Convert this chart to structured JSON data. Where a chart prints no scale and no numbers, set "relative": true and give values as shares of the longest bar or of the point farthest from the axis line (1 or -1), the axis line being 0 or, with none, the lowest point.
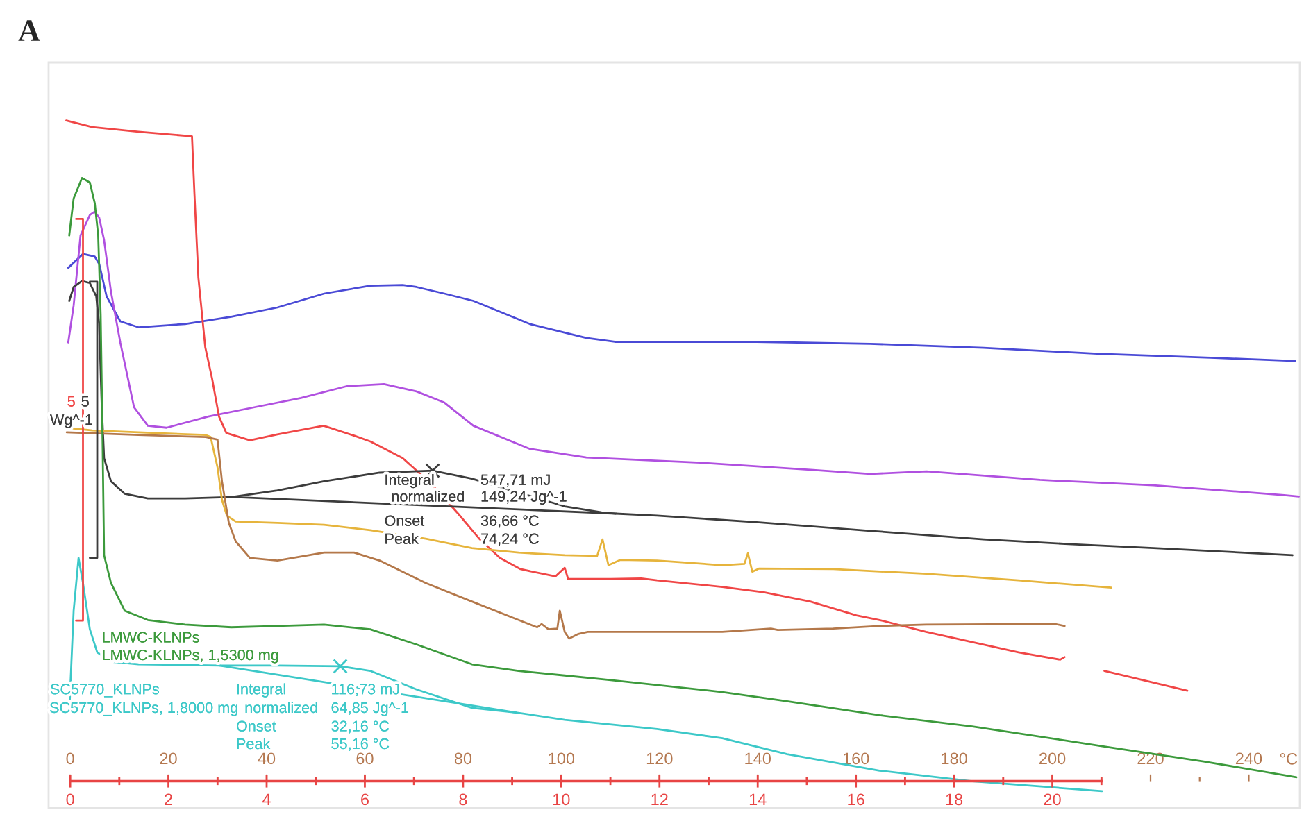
{
  "chart_data": {
    "type": "line",
    "relative": true,
    "title": "A",
    "xlabel": "°C",
    "xlim": [
      -4.4,
      250.4
    ],
    "xticks": [
      0,
      {
        "value": 10,
        "label": null
      },
      20,
      {
        "value": 30,
        "label": null
      },
      40,
      {
        "value": 50,
        "label": null
      },
      60,
      {
        "value": 70,
        "label": null
      },
      80,
      {
        "value": 90,
        "label": null
      },
      100,
      {
        "value": 110,
        "label": null
      },
      120,
      {
        "value": 130,
        "label": null
      },
      140,
      {
        "value": 150,
        "label": null
      },
      160,
      {
        "value": 170,
        "label": null
      },
      180,
      {
        "value": 190,
        "label": null
      },
      200,
      {
        "value": 210,
        "label": null
      },
      220,
      {
        "value": 230,
        "label": null
      },
      240
    ],
    "x2lim": [
      -0.44,
      25.04
    ],
    "x2ticks": [
      0,
      {
        "value": 1,
        "label": null
      },
      2,
      {
        "value": 3,
        "label": null
      },
      4,
      {
        "value": 5,
        "label": null
      },
      6,
      {
        "value": 7,
        "label": null
      },
      8,
      {
        "value": 9,
        "label": null
      },
      10,
      {
        "value": 11,
        "label": null
      },
      12,
      {
        "value": 13,
        "label": null
      },
      14,
      {
        "value": 15,
        "label": null
      },
      16,
      {
        "value": 17,
        "label": null
      },
      18,
      {
        "value": 19,
        "label": null
      },
      20,
      {
        "value": 21,
        "label": null
      }
    ],
    "series": [
      {
        "color": "#4a4ad6",
        "x": [
          -0.4,
          2.6,
          5.0,
          5.9,
          7.4,
          10.2,
          13.9,
          23.4,
          32.8,
          42.2,
          51.7,
          61.1,
          67.7,
          70.5,
          76.2,
          82.1,
          93.6,
          105.1,
          110.9,
          139.8,
          162.9,
          186.0,
          209.1,
          232.2,
          249.5
        ],
        "values": [
          0.777,
          0.798,
          0.794,
          0.783,
          0.734,
          0.696,
          0.687,
          0.692,
          0.703,
          0.717,
          0.738,
          0.75,
          0.751,
          0.748,
          0.738,
          0.727,
          0.692,
          0.671,
          0.665,
          0.665,
          0.662,
          0.656,
          0.647,
          0.641,
          0.636
        ]
      },
      {
        "color": "#b050e0",
        "x": [
          -0.4,
          0.7,
          2.1,
          4.0,
          5.0,
          5.9,
          6.9,
          8.3,
          10.2,
          13.0,
          15.8,
          19.6,
          28.1,
          37.5,
          47.0,
          56.4,
          63.9,
          70.5,
          76.2,
          82.1,
          93.6,
          105.1,
          128.3,
          151.3,
          162.9,
          174.4,
          197.5,
          220.6,
          247.2,
          250.2
        ],
        "values": [
          0.664,
          0.72,
          0.826,
          0.857,
          0.862,
          0.853,
          0.819,
          0.741,
          0.664,
          0.566,
          0.538,
          0.535,
          0.552,
          0.566,
          0.58,
          0.598,
          0.601,
          0.59,
          0.573,
          0.538,
          0.503,
          0.49,
          0.482,
          0.471,
          0.465,
          0.469,
          0.456,
          0.448,
          0.433,
          0.431
        ]
      },
      {
        "color": "#f04646",
        "x": [
          -0.8,
          4.5,
          13.9,
          24.8,
          25.3,
          26.1,
          27.5,
          28.9,
          30.3,
          31.8,
          36.6,
          42.2,
          51.6,
          57.8,
          61.2,
          67.7,
          73.4,
          79.0,
          83.3,
          87.5,
          91.7,
          98.8,
          100.7,
          101.4,
          110.1,
          116.3,
          119.5,
          132.8,
          141.3,
          150.7,
          160.1,
          164.8,
          174.3,
          193.1,
          201.6,
          202.5,
          206.5,
          210.6,
          227.5
        ],
        "values": [
          1.0,
          0.99,
          0.983,
          0.976,
          0.889,
          0.762,
          0.657,
          0.609,
          0.552,
          0.527,
          0.516,
          0.525,
          0.538,
          0.523,
          0.514,
          0.489,
          0.451,
          0.405,
          0.367,
          0.338,
          0.321,
          0.31,
          0.323,
          0.306,
          0.306,
          0.307,
          0.304,
          0.294,
          0.286,
          0.272,
          0.251,
          0.244,
          0.226,
          0.195,
          0.184,
          0.188,
          null,
          0.167,
          0.137
        ]
      },
      {
        "color": "#3c3c3c",
        "x": [
          -0.2,
          0.7,
          2.4,
          4.0,
          5.3,
          5.9,
          6.4,
          6.9,
          8.3,
          11.1,
          15.8,
          23.4,
          32.8,
          42.2,
          51.7,
          63.0,
          73.8,
          81.8,
          91.3,
          100.7,
          108.2,
          111.1,
          119.5,
          139.8,
          162.9,
          186.0,
          203.3,
          220.6,
          248.9
        ],
        "values": [
          0.727,
          0.748,
          0.757,
          0.754,
          0.734,
          0.692,
          0.573,
          0.489,
          0.454,
          0.435,
          0.428,
          0.428,
          0.43,
          0.44,
          0.454,
          0.467,
          0.47,
          0.458,
          0.437,
          0.416,
          0.407,
          0.405,
          0.402,
          0.392,
          0.379,
          0.366,
          0.359,
          0.353,
          0.342
        ]
      },
      {
        "color": "#e6b43c",
        "x": [
          -0.7,
          4.5,
          13.9,
          27.6,
          28.6,
          30.0,
          30.9,
          31.9,
          33.7,
          42.2,
          51.7,
          61.1,
          72.4,
          81.8,
          91.3,
          100.7,
          107.3,
          108.4,
          109.6,
          112.0,
          119.5,
          132.8,
          137.3,
          138.0,
          138.9,
          140.3,
          155.4,
          174.3,
          193.1,
          212.0
        ],
        "values": [
          0.535,
          0.531,
          0.528,
          0.524,
          0.521,
          0.475,
          0.426,
          0.402,
          0.393,
          0.391,
          0.388,
          0.38,
          0.367,
          0.353,
          0.346,
          0.342,
          0.341,
          0.366,
          0.327,
          0.335,
          0.334,
          0.327,
          0.329,
          0.345,
          0.317,
          0.322,
          0.321,
          0.314,
          0.304,
          0.293
        ]
      },
      {
        "color": "#b4784a",
        "x": [
          -0.7,
          13.9,
          27.6,
          30.0,
          30.9,
          32.3,
          33.7,
          36.6,
          42.2,
          51.7,
          57.8,
          63.0,
          72.4,
          81.8,
          91.3,
          95.1,
          96.0,
          97.4,
          99.2,
          99.7,
          100.7,
          101.6,
          103.5,
          105.4,
          119.5,
          132.8,
          142.7,
          144.1,
          155.4,
          164.8,
          174.3,
          200.6,
          202.5
        ],
        "values": [
          0.528,
          0.524,
          0.521,
          0.517,
          0.454,
          0.391,
          0.363,
          0.338,
          0.334,
          0.346,
          0.346,
          0.334,
          0.3,
          0.272,
          0.244,
          0.233,
          0.238,
          0.23,
          0.231,
          0.258,
          0.226,
          0.216,
          0.223,
          0.226,
          0.226,
          0.226,
          0.231,
          0.229,
          0.231,
          0.235,
          0.237,
          0.238,
          0.235
        ]
      },
      {
        "name": "LMWC-KLNPs",
        "color": "#3c9a3c",
        "x": [
          -0.2,
          0.7,
          2.4,
          4.0,
          5.0,
          5.7,
          6.2,
          6.6,
          6.9,
          8.3,
          11.1,
          15.8,
          23.4,
          32.8,
          42.2,
          51.7,
          61.1,
          70.5,
          81.8,
          91.3,
          100.7,
          110.1,
          132.8,
          146.0,
          164.8,
          183.7,
          212.0,
          230.8,
          249.7
        ],
        "values": [
          0.826,
          0.882,
          0.913,
          0.906,
          0.875,
          0.826,
          0.706,
          0.51,
          0.342,
          0.3,
          0.258,
          0.244,
          0.237,
          0.233,
          0.235,
          0.237,
          0.23,
          0.207,
          0.177,
          0.167,
          0.16,
          0.153,
          0.135,
          0.121,
          0.1,
          0.083,
          0.051,
          0.03,
          0.006
        ]
      },
      {
        "name": "SC5770_KLNPs",
        "color": "#3cc8c8",
        "x": [
          -0.1,
          0.7,
          1.7,
          2.6,
          4.0,
          5.5,
          8.3,
          13.9,
          23.4,
          30.4,
          42.2,
          55.0,
          61.1,
          70.5,
          81.8,
          90.8,
          100.7,
          119.5,
          132.8,
          146.0,
          164.8,
          183.7,
          210.1
        ],
        "values": [
          0.121,
          0.258,
          0.338,
          0.3,
          0.23,
          0.195,
          0.181,
          0.177,
          0.176,
          0.175,
          0.175,
          0.174,
          0.167,
          0.139,
          0.111,
          0.104,
          0.093,
          0.079,
          0.065,
          0.041,
          0.016,
          0.0,
          -0.015
        ]
      },
      {
        "color": "#f04646",
        "x": [
          1.2,
          2.6,
          2.6,
          1.2
        ],
        "values": [
          0.851,
          0.851,
          0.243,
          0.243
        ]
      },
      {
        "color": "#3c3c3c",
        "x": [
          4.0,
          5.5,
          5.5,
          4.0
        ],
        "values": [
          0.756,
          0.756,
          0.338,
          0.338
        ]
      },
      {
        "color": "#3c3c3c",
        "x": [
          33.3,
          111.1
        ],
        "values": [
          0.43,
          0.405
        ]
      },
      {
        "color": "#3cc8c8",
        "x": [
          30.4,
          90.8
        ],
        "values": [
          0.175,
          0.104
        ]
      },
      {
        "type": "scatter",
        "marker": "cross",
        "color": "#3c3c3c",
        "x": [
          73.8
        ],
        "values": [
          0.47
        ]
      },
      {
        "type": "scatter",
        "marker": "cross",
        "color": "#3cc8c8",
        "x": [
          55.0
        ],
        "values": [
          0.174
        ]
      }
    ],
    "annotations": [
      "5",
      "5",
      "Wg^-1",
      "Integral",
      "normalized",
      "Onset",
      "Peak",
      "547,71 mJ",
      "149,24 Jg^-1",
      "36,66 °C",
      "74,24 °C",
      "LMWC-KLNPs, 1,5300 mg",
      "SC5770_KLNPs, 1,8000 mg",
      "Integral",
      "normalized",
      "Onset",
      "Peak",
      "116,73 mJ",
      "64,85 Jg^-1",
      "32,16 °C",
      "55,16 °C"
    ]
  }
}
